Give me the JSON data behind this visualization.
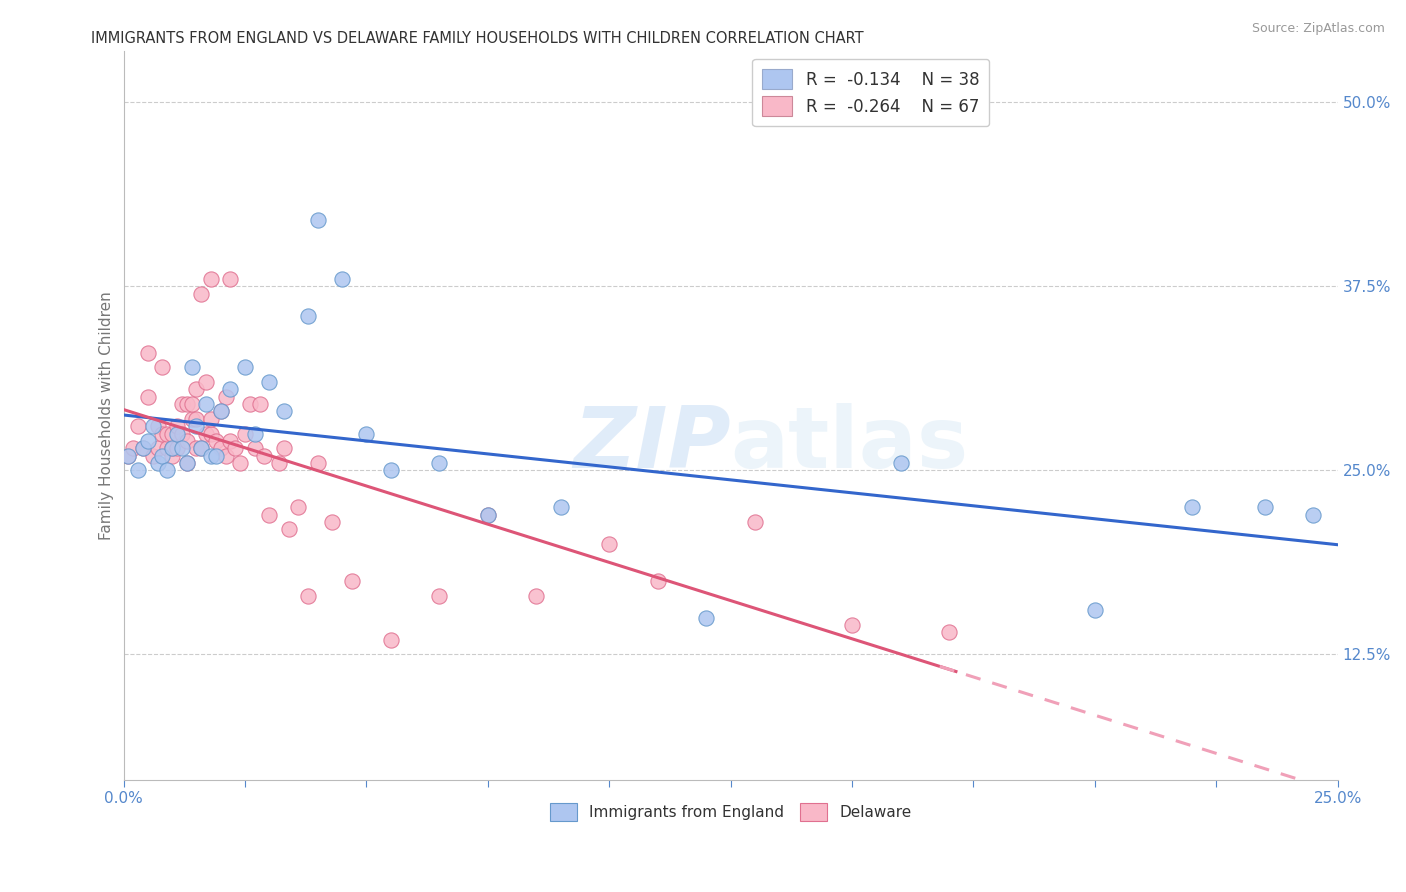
{
  "title": "IMMIGRANTS FROM ENGLAND VS DELAWARE FAMILY HOUSEHOLDS WITH CHILDREN CORRELATION CHART",
  "source": "Source: ZipAtlas.com",
  "ylabel": "Family Households with Children",
  "ytick_vals": [
    0.125,
    0.25,
    0.375,
    0.5
  ],
  "ytick_labels": [
    "12.5%",
    "25.0%",
    "37.5%",
    "50.0%"
  ],
  "xlim": [
    0.0,
    0.25
  ],
  "ylim": [
    0.04,
    0.535
  ],
  "legend_color1": "#aec6f0",
  "legend_color2": "#f9b8c8",
  "scatter_color1": "#aec6f0",
  "scatter_color2": "#f9b8c8",
  "scatter_edgecolor1": "#6699cc",
  "scatter_edgecolor2": "#e07090",
  "line_color1": "#3366cc",
  "line_color2": "#dd5577",
  "line_color2_dash": "#f0a0b8",
  "watermark_zip": "ZIP",
  "watermark_atlas": "atlas",
  "blue_label": "Immigrants from England",
  "pink_label": "Delaware",
  "eng_x": [
    0.001,
    0.003,
    0.004,
    0.005,
    0.006,
    0.007,
    0.008,
    0.009,
    0.01,
    0.011,
    0.012,
    0.013,
    0.014,
    0.015,
    0.016,
    0.017,
    0.018,
    0.019,
    0.02,
    0.022,
    0.025,
    0.027,
    0.03,
    0.033,
    0.038,
    0.04,
    0.045,
    0.05,
    0.055,
    0.065,
    0.075,
    0.09,
    0.12,
    0.16,
    0.2,
    0.22,
    0.235,
    0.245
  ],
  "eng_y": [
    0.26,
    0.25,
    0.265,
    0.27,
    0.28,
    0.255,
    0.26,
    0.25,
    0.265,
    0.275,
    0.265,
    0.255,
    0.32,
    0.28,
    0.265,
    0.295,
    0.26,
    0.26,
    0.29,
    0.305,
    0.32,
    0.275,
    0.31,
    0.29,
    0.355,
    0.42,
    0.38,
    0.275,
    0.25,
    0.255,
    0.22,
    0.225,
    0.15,
    0.255,
    0.155,
    0.225,
    0.225,
    0.22
  ],
  "del_x": [
    0.001,
    0.002,
    0.003,
    0.004,
    0.005,
    0.005,
    0.006,
    0.007,
    0.007,
    0.008,
    0.008,
    0.009,
    0.009,
    0.01,
    0.01,
    0.01,
    0.011,
    0.011,
    0.012,
    0.012,
    0.013,
    0.013,
    0.013,
    0.014,
    0.014,
    0.015,
    0.015,
    0.015,
    0.016,
    0.016,
    0.017,
    0.017,
    0.018,
    0.018,
    0.018,
    0.019,
    0.02,
    0.02,
    0.021,
    0.021,
    0.022,
    0.022,
    0.023,
    0.024,
    0.025,
    0.026,
    0.027,
    0.028,
    0.029,
    0.03,
    0.032,
    0.033,
    0.034,
    0.036,
    0.038,
    0.04,
    0.043,
    0.047,
    0.055,
    0.065,
    0.075,
    0.085,
    0.1,
    0.11,
    0.13,
    0.15,
    0.17
  ],
  "del_y": [
    0.26,
    0.265,
    0.28,
    0.265,
    0.33,
    0.3,
    0.26,
    0.28,
    0.265,
    0.275,
    0.32,
    0.265,
    0.275,
    0.26,
    0.265,
    0.275,
    0.265,
    0.28,
    0.275,
    0.295,
    0.27,
    0.295,
    0.255,
    0.285,
    0.295,
    0.265,
    0.285,
    0.305,
    0.265,
    0.37,
    0.275,
    0.31,
    0.275,
    0.285,
    0.38,
    0.27,
    0.265,
    0.29,
    0.26,
    0.3,
    0.27,
    0.38,
    0.265,
    0.255,
    0.275,
    0.295,
    0.265,
    0.295,
    0.26,
    0.22,
    0.255,
    0.265,
    0.21,
    0.225,
    0.165,
    0.255,
    0.215,
    0.175,
    0.135,
    0.165,
    0.22,
    0.165,
    0.2,
    0.175,
    0.215,
    0.145,
    0.14
  ]
}
